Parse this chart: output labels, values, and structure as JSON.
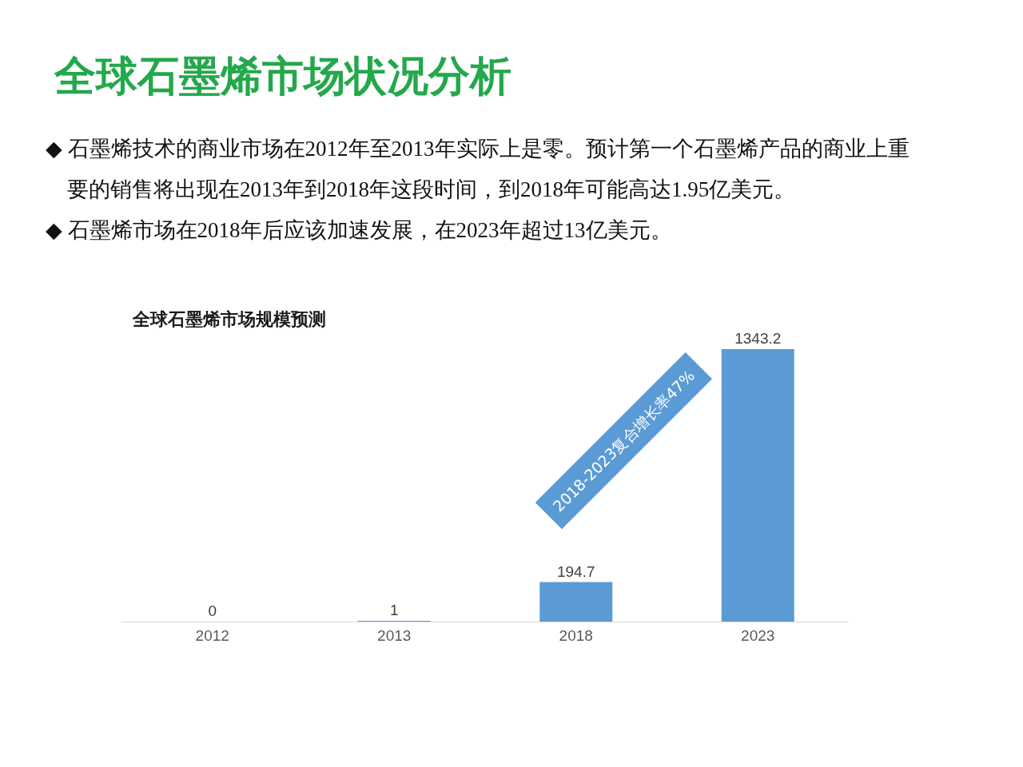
{
  "chart_data": {
    "type": "bar",
    "title": "全球石墨烯市场状况分析",
    "subtitle": "全球石墨烯市场规模预测",
    "annotations": [
      "◆ 石墨烯技术的商业市场在2012年至2013年实际上是零。预计第一个石墨烯产品的商业上重要的销售将出现在2013年到2018年这段时间，到2018年可能高达1.95亿美元。",
      "◆ 石墨烯市场在2018年后应该加速发展，在2023年超过13亿美元。",
      "2018-2023复合增长率47%"
    ],
    "categories": [
      "2012",
      "2013",
      "2018",
      "2023"
    ],
    "series": [
      {
        "color": "#5b9bd5",
        "values": [
          0,
          1,
          194.7,
          1343.2
        ]
      }
    ],
    "data_labels": true,
    "tick_labels": "x"
  }
}
